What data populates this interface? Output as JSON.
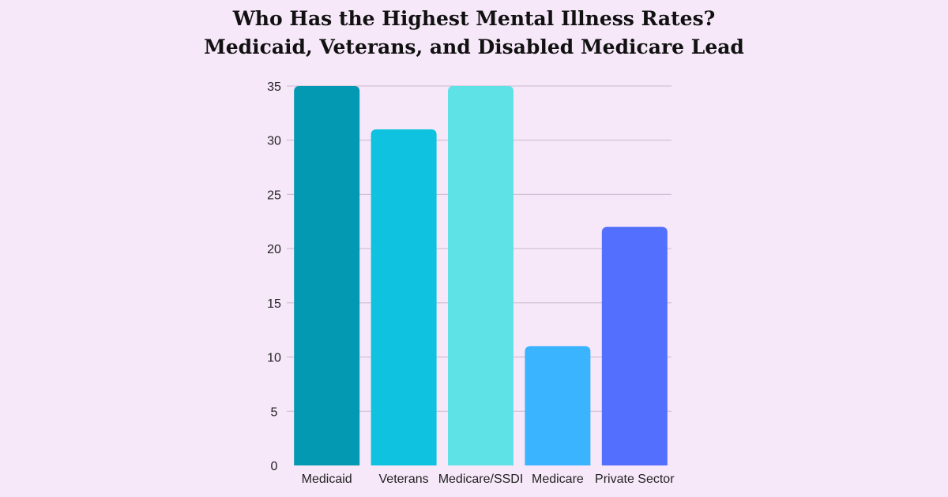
{
  "title_lines": [
    "Who Has the Highest Mental Illness Rates?",
    "Medicaid, Veterans, and Disabled Medicare Lead"
  ],
  "chart_data": {
    "type": "bar",
    "title": "Who Has the Highest Mental Illness Rates? Medicaid, Veterans, and Disabled Medicare Lead",
    "categories": [
      "Medicaid",
      "Veterans",
      "Medicare/SSDI",
      "Medicare",
      "Private Sector"
    ],
    "values": [
      35,
      31,
      35,
      11,
      22
    ],
    "colors": [
      "#0399b3",
      "#0ec2e0",
      "#5ee2e6",
      "#3bb4ff",
      "#526ffd"
    ],
    "xlabel": "",
    "ylabel": "",
    "ylim": [
      0,
      35
    ],
    "yticks": [
      0,
      5,
      10,
      15,
      20,
      25,
      30,
      35
    ],
    "grid": true,
    "gridColor": "#c9b9cf"
  }
}
